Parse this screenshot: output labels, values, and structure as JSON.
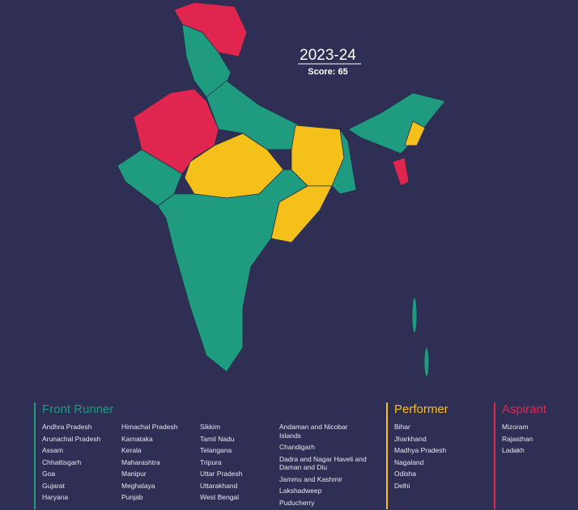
{
  "header": {
    "year": "2023-24",
    "score": "Score: 65"
  },
  "legend": [
    {
      "title": "Front Runner",
      "color": "#1f9c80",
      "columns": [
        [
          "Andhra Pradesh",
          "Arunachal Pradesh",
          "Assam",
          "Chhattisgarh",
          "Goa",
          "Gujarat",
          "Haryana"
        ],
        [
          "Himachal Pradesh",
          "Karnataka",
          "Kerala",
          "Maharashtra",
          "Manipur",
          "Meghalaya",
          "Punjab"
        ],
        [
          "Sikkim",
          "Tamil Nadu",
          "Telangana",
          "Tripura",
          "Uttar Pradesh",
          "Uttarakhand",
          "West Bengal"
        ],
        [
          "Andaman and Nicobar Islands",
          "Chandigarh",
          "Dadra and Nagar Haveli and Daman and Diu",
          "Jammu and Kashmir",
          "Lakshadweep",
          "Puducherry"
        ]
      ]
    },
    {
      "title": "Performer",
      "color": "#f5c01a",
      "columns": [
        [
          "Bihar",
          "Jharkhand",
          "Madhya Pradesh",
          "Nagaland",
          "Odisha",
          "Delhi"
        ]
      ]
    },
    {
      "title": "Aspirant",
      "color": "#e0264f",
      "columns": [
        [
          "Mizoram",
          "Rajasthan",
          "Ladakh"
        ]
      ]
    }
  ]
}
